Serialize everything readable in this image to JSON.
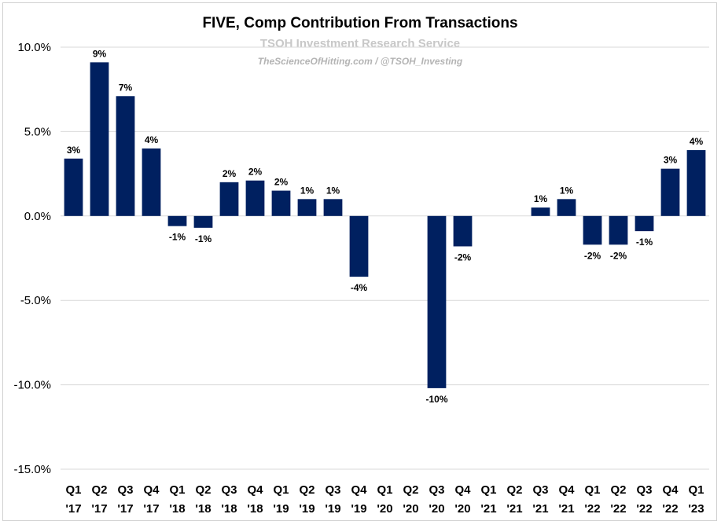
{
  "chart_data": {
    "type": "bar",
    "title": "FIVE, Comp Contribution From Transactions",
    "subtitle": "TSOH Investment Research Service",
    "credit": "TheScienceOfHitting.com / @TSOH_Investing",
    "xlabel": "",
    "ylabel": "",
    "ylim": [
      -15,
      10
    ],
    "yticks": [
      {
        "value": 10,
        "label": "10.0%"
      },
      {
        "value": 5,
        "label": "5.0%"
      },
      {
        "value": 0,
        "label": "0.0%"
      },
      {
        "value": -5,
        "label": "-5.0%"
      },
      {
        "value": -10,
        "label": "-10.0%"
      },
      {
        "value": -15,
        "label": "-15.0%"
      }
    ],
    "grid": true,
    "bar_color": "#002060",
    "categories": [
      {
        "q": "Q1",
        "y": "'17"
      },
      {
        "q": "Q2",
        "y": "'17"
      },
      {
        "q": "Q3",
        "y": "'17"
      },
      {
        "q": "Q4",
        "y": "'17"
      },
      {
        "q": "Q1",
        "y": "'18"
      },
      {
        "q": "Q2",
        "y": "'18"
      },
      {
        "q": "Q3",
        "y": "'18"
      },
      {
        "q": "Q4",
        "y": "'18"
      },
      {
        "q": "Q1",
        "y": "'19"
      },
      {
        "q": "Q2",
        "y": "'19"
      },
      {
        "q": "Q3",
        "y": "'19"
      },
      {
        "q": "Q4",
        "y": "'19"
      },
      {
        "q": "Q1",
        "y": "'20"
      },
      {
        "q": "Q2",
        "y": "'20"
      },
      {
        "q": "Q3",
        "y": "'20"
      },
      {
        "q": "Q4",
        "y": "'20"
      },
      {
        "q": "Q1",
        "y": "'21"
      },
      {
        "q": "Q2",
        "y": "'21"
      },
      {
        "q": "Q3",
        "y": "'21"
      },
      {
        "q": "Q4",
        "y": "'21"
      },
      {
        "q": "Q1",
        "y": "'22"
      },
      {
        "q": "Q2",
        "y": "'22"
      },
      {
        "q": "Q3",
        "y": "'22"
      },
      {
        "q": "Q4",
        "y": "'22"
      },
      {
        "q": "Q1",
        "y": "'23"
      }
    ],
    "values": [
      3.4,
      9.1,
      7.1,
      4.0,
      -0.6,
      -0.7,
      2.0,
      2.1,
      1.5,
      1.0,
      1.0,
      -3.6,
      null,
      null,
      -10.2,
      -1.8,
      null,
      null,
      0.5,
      1.0,
      -1.7,
      -1.7,
      -0.9,
      2.8,
      3.9
    ],
    "data_labels": [
      "3%",
      "9%",
      "7%",
      "4%",
      "-1%",
      "-1%",
      "2%",
      "2%",
      "2%",
      "1%",
      "1%",
      "-4%",
      "",
      "",
      "-10%",
      "-2%",
      "",
      "",
      "1%",
      "1%",
      "-2%",
      "-2%",
      "-1%",
      "3%",
      "4%"
    ]
  }
}
